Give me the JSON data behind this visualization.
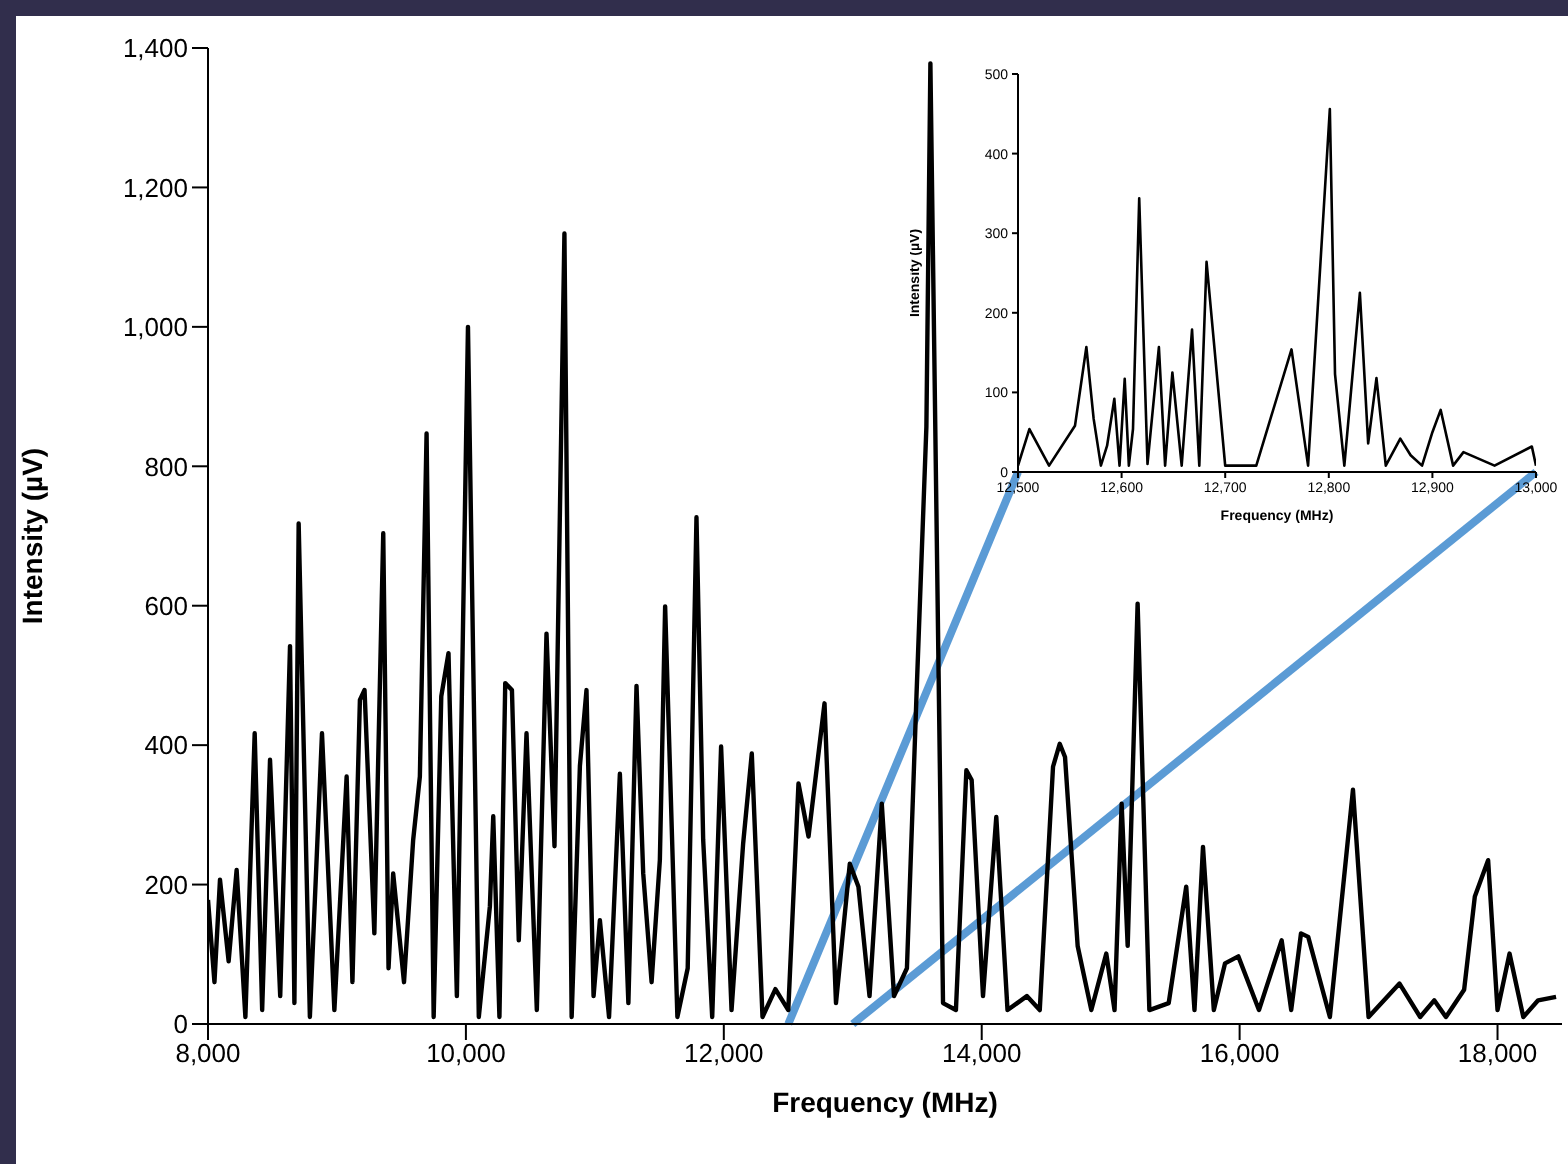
{
  "chart_data": [
    {
      "type": "line",
      "xlabel": "Frequency (MHz)",
      "ylabel": "Intensity (µV)",
      "xlim": [
        8000,
        18500
      ],
      "ylim": [
        0,
        1400
      ],
      "xticks": [
        {
          "value": 8000,
          "label": "8,000"
        },
        {
          "value": 10000,
          "label": "10,000"
        },
        {
          "value": 12000,
          "label": "12,000"
        },
        {
          "value": 14000,
          "label": "14,000"
        },
        {
          "value": 16000,
          "label": "16,000"
        },
        {
          "value": 18000,
          "label": "18,000"
        }
      ],
      "yticks": [
        0,
        200,
        400,
        600,
        800,
        {
          "value": 1000,
          "label": "1,000"
        },
        {
          "value": 1200,
          "label": "1,200"
        },
        {
          "value": 1400,
          "label": "1,400"
        }
      ],
      "grid": false,
      "legend": false,
      "series": [
        {
          "color": "#000000",
          "x": [
            8000,
            8050,
            8093,
            8160,
            8222,
            8290,
            8362,
            8420,
            8481,
            8560,
            8636,
            8670,
            8703,
            8790,
            8884,
            8980,
            9075,
            9120,
            9178,
            9214,
            9290,
            9359,
            9400,
            9436,
            9520,
            9591,
            9643,
            9695,
            9750,
            9809,
            9865,
            9930,
            10016,
            10100,
            10186,
            10212,
            10260,
            10305,
            10357,
            10410,
            10470,
            10550,
            10625,
            10687,
            10764,
            10820,
            10884,
            10935,
            10990,
            11039,
            11110,
            11194,
            11260,
            11323,
            11375,
            11440,
            11504,
            11545,
            11640,
            11720,
            11788,
            11840,
            11910,
            11979,
            12060,
            12150,
            12217,
            12300,
            12400,
            12500,
            12579,
            12657,
            12781,
            12870,
            12977,
            13044,
            13130,
            13225,
            13320,
            13420,
            13494,
            13571,
            13602,
            13700,
            13800,
            13881,
            13922,
            14010,
            14113,
            14200,
            14350,
            14450,
            14553,
            14605,
            14646,
            14744,
            14850,
            14966,
            15030,
            15085,
            15132,
            15209,
            15300,
            15450,
            15586,
            15650,
            15716,
            15800,
            15887,
            15990,
            16150,
            16326,
            16400,
            16476,
            16532,
            16700,
            16879,
            17000,
            17240,
            17400,
            17509,
            17600,
            17741,
            17824,
            17927,
            18000,
            18093,
            18200,
            18315,
            18454
          ],
          "values": [
            178,
            60,
            207,
            90,
            221,
            10,
            417,
            20,
            379,
            40,
            542,
            30,
            718,
            10,
            417,
            20,
            355,
            60,
            465,
            479,
            130,
            704,
            80,
            216,
            60,
            264,
            355,
            847,
            10,
            470,
            532,
            40,
            1000,
            10,
            169,
            298,
            10,
            489,
            479,
            120,
            417,
            20,
            560,
            255,
            1134,
            10,
            370,
            479,
            40,
            149,
            10,
            359,
            30,
            485,
            216,
            60,
            235,
            599,
            10,
            80,
            727,
            264,
            10,
            398,
            20,
            259,
            388,
            10,
            50,
            20,
            345,
            269,
            460,
            30,
            230,
            197,
            40,
            316,
            40,
            80,
            470,
            857,
            1378,
            30,
            20,
            364,
            350,
            40,
            297,
            20,
            40,
            20,
            369,
            402,
            383,
            112,
            20,
            101,
            20,
            316,
            112,
            603,
            20,
            30,
            197,
            20,
            254,
            20,
            87,
            97,
            20,
            120,
            20,
            130,
            125,
            10,
            336,
            10,
            58,
            10,
            34,
            10,
            49,
            183,
            235,
            20,
            101,
            10,
            34,
            39
          ]
        }
      ]
    },
    {
      "type": "line",
      "xlabel": "Frequency (MHz)",
      "ylabel": "Intensity (µV)",
      "xlim": [
        12500,
        13000
      ],
      "ylim": [
        0,
        500
      ],
      "xticks": [
        {
          "value": 12500,
          "label": "12,500"
        },
        {
          "value": 12600,
          "label": "12,600"
        },
        {
          "value": 12700,
          "label": "12,700"
        },
        {
          "value": 12800,
          "label": "12,800"
        },
        {
          "value": 12900,
          "label": "12,900"
        },
        {
          "value": 13000,
          "label": "13,000"
        }
      ],
      "yticks": [
        0,
        100,
        200,
        300,
        400,
        500
      ],
      "grid": false,
      "legend": false,
      "series": [
        {
          "color": "#000000",
          "x": [
            12500,
            12511,
            12530,
            12555,
            12566,
            12573,
            12580,
            12586,
            12593,
            12598,
            12603,
            12607,
            12611,
            12617,
            12625,
            12636,
            12642,
            12649,
            12658,
            12668,
            12675,
            12682,
            12700,
            12730,
            12764,
            12780,
            12801,
            12806,
            12815,
            12830,
            12838,
            12846,
            12855,
            12869,
            12879,
            12890,
            12900,
            12908,
            12920,
            12930,
            12960,
            12996,
            13000
          ],
          "values": [
            8,
            54,
            8,
            58,
            157,
            67,
            8,
            33,
            92,
            8,
            117,
            8,
            54,
            344,
            10,
            157,
            8,
            125,
            8,
            179,
            8,
            264,
            8,
            8,
            154,
            8,
            456,
            123,
            8,
            225,
            36,
            118,
            8,
            42,
            21,
            8,
            50,
            78,
            8,
            25,
            8,
            32,
            8
          ]
        }
      ]
    }
  ]
}
